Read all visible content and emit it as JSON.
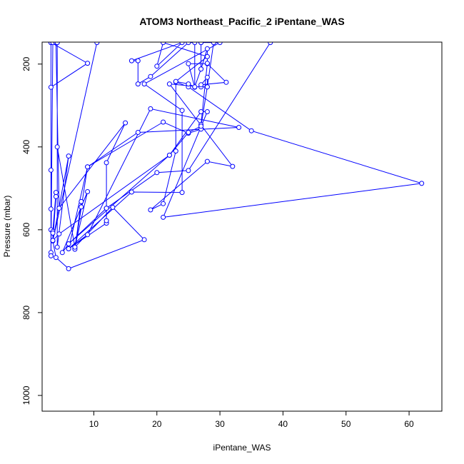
{
  "chart_data": {
    "type": "line",
    "title": "ATOM3 Northeast_Pacific_2 iPentane_WAS",
    "xlabel": "iPentane_WAS",
    "ylabel": "Pressure (mbar)",
    "xlim": [
      1.8,
      65.2
    ],
    "ylim": [
      1038,
      147
    ],
    "y_reversed": true,
    "x_ticks": [
      10,
      20,
      30,
      40,
      50,
      60
    ],
    "y_ticks": [
      200,
      400,
      600,
      800,
      1000
    ],
    "grid": false,
    "line_color": "#0000ff",
    "marker": "open-circle",
    "series": [
      {
        "points": [
          [
            3.2,
            148
          ],
          [
            3.2,
            256
          ],
          [
            9.0,
            198
          ],
          [
            3.2,
            148
          ],
          [
            3.2,
            456
          ],
          [
            3.2,
            550
          ],
          [
            3.2,
            600
          ],
          [
            3.2,
            655
          ],
          [
            3.2,
            663
          ],
          [
            3.5,
            148
          ],
          [
            4.2,
            148
          ],
          [
            4.2,
            642
          ],
          [
            6.0,
            422
          ],
          [
            3.5,
            626
          ],
          [
            4.0,
            520
          ],
          [
            4.0,
            510
          ],
          [
            3.5,
            604
          ],
          [
            3.5,
            608
          ],
          [
            3.5,
            627
          ],
          [
            4.0,
            667
          ],
          [
            6.0,
            694
          ],
          [
            18.0,
            624
          ],
          [
            13.0,
            546
          ],
          [
            7.0,
            642
          ],
          [
            8.0,
            545
          ],
          [
            8.0,
            532
          ],
          [
            7.0,
            647
          ],
          [
            9.0,
            448
          ],
          [
            17.0,
            365
          ],
          [
            33.0,
            353
          ],
          [
            19.0,
            308
          ],
          [
            9.0,
            612
          ],
          [
            6.0,
            646
          ],
          [
            12.0,
            584
          ],
          [
            12.0,
            578
          ],
          [
            12.0,
            548
          ],
          [
            12.0,
            438
          ],
          [
            15.0,
            342
          ],
          [
            4.5,
            548
          ],
          [
            4.0,
            148
          ],
          [
            4.2,
            148
          ],
          [
            4.2,
            400
          ],
          [
            7.0,
            642
          ],
          [
            9.0,
            508
          ],
          [
            5.0,
            655
          ],
          [
            6.0,
            634
          ],
          [
            22.0,
            420
          ],
          [
            27.0,
            315
          ],
          [
            28.0,
            315
          ],
          [
            21.0,
            570
          ],
          [
            62.0,
            488
          ],
          [
            35.0,
            361
          ],
          [
            25.0,
            255
          ],
          [
            23.0,
            243
          ],
          [
            23.0,
            410
          ],
          [
            21.0,
            537
          ],
          [
            19.0,
            552
          ],
          [
            28.0,
            435
          ],
          [
            32.0,
            447
          ],
          [
            22.0,
            248
          ],
          [
            27.0,
            255
          ],
          [
            28.0,
            255
          ],
          [
            28.0,
            232
          ],
          [
            27.0,
            250
          ],
          [
            31.0,
            244
          ],
          [
            28.0,
            199
          ],
          [
            25.0,
            199
          ],
          [
            26.0,
            256
          ],
          [
            26.0,
            148
          ],
          [
            25.0,
            148
          ],
          [
            19.0,
            230
          ],
          [
            17.0,
            248
          ],
          [
            17.0,
            192
          ],
          [
            16.0,
            192
          ],
          [
            24.0,
            148
          ],
          [
            20.0,
            205
          ],
          [
            21.0,
            148
          ],
          [
            28.0,
            182
          ],
          [
            28.0,
            163
          ],
          [
            27.0,
            212
          ],
          [
            27.0,
            148
          ],
          [
            30.0,
            148
          ],
          [
            18.0,
            248
          ],
          [
            24.0,
            312
          ],
          [
            24.0,
            510
          ],
          [
            16.0,
            509
          ],
          [
            6.0,
            646
          ],
          [
            9.0,
            448
          ],
          [
            21.0,
            340
          ],
          [
            25.0,
            367
          ],
          [
            27.0,
            357
          ],
          [
            27.0,
            346
          ],
          [
            28.0,
            198
          ],
          [
            28.0,
            182
          ],
          [
            23.0,
            242
          ],
          [
            25.0,
            248
          ],
          [
            26.0,
            255
          ],
          [
            27.0,
            212
          ],
          [
            27.0,
            148
          ]
        ]
      },
      {
        "points": [
          [
            10.5,
            148
          ],
          [
            3.5,
            626
          ],
          [
            4.5,
            610
          ],
          [
            22.0,
            420
          ],
          [
            25.0,
            365
          ],
          [
            27.0,
            350
          ],
          [
            28.0,
            255
          ],
          [
            29.0,
            148
          ]
        ]
      },
      {
        "points": [
          [
            6.0,
            634
          ],
          [
            12.0,
            548
          ],
          [
            20.0,
            462
          ],
          [
            25.0,
            457
          ],
          [
            38.0,
            148
          ]
        ]
      }
    ]
  }
}
